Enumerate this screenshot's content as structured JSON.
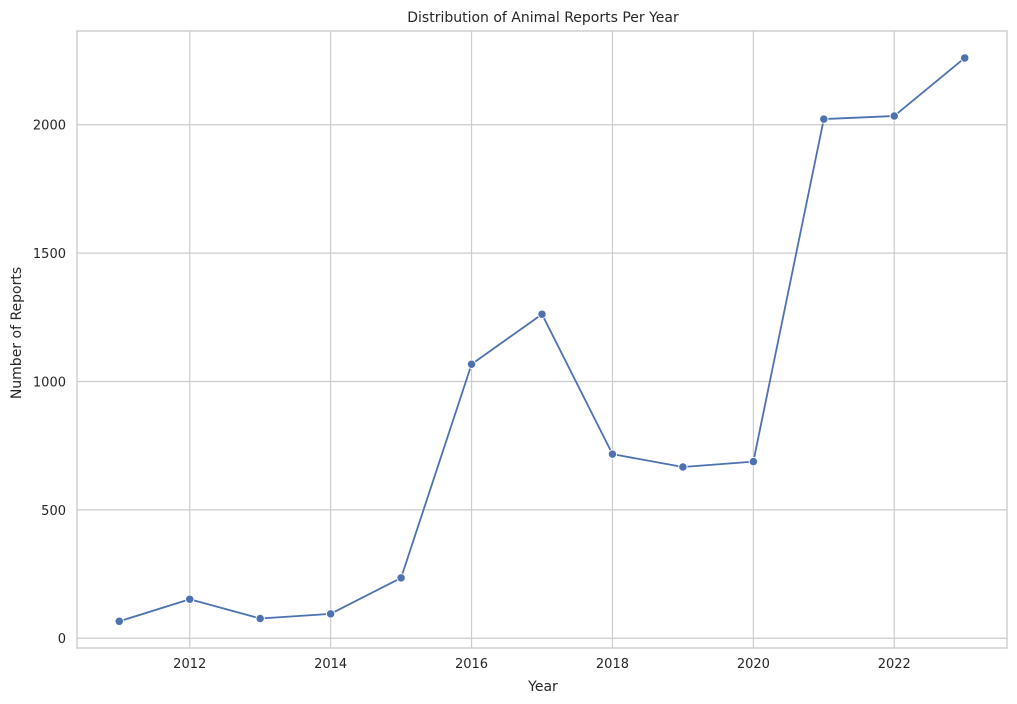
{
  "chart_data": {
    "type": "line",
    "title": "Distribution of Animal Reports Per Year",
    "xlabel": "Year",
    "ylabel": "Number of Reports",
    "x": [
      2011,
      2012,
      2013,
      2014,
      2015,
      2016,
      2017,
      2018,
      2019,
      2020,
      2021,
      2022,
      2023
    ],
    "series": [
      {
        "values": [
          66,
          152,
          77,
          95,
          235,
          1067,
          1262,
          717,
          667,
          688,
          2022,
          2034,
          2260
        ],
        "color": "#4c72b0"
      }
    ],
    "xticks": [
      2012,
      2014,
      2016,
      2018,
      2020,
      2022
    ],
    "yticks": [
      0,
      500,
      1000,
      1500,
      2000
    ],
    "xlim": [
      2010.4,
      2023.6
    ],
    "ylim": [
      -38,
      2365
    ],
    "grid": true,
    "legend": "none"
  }
}
